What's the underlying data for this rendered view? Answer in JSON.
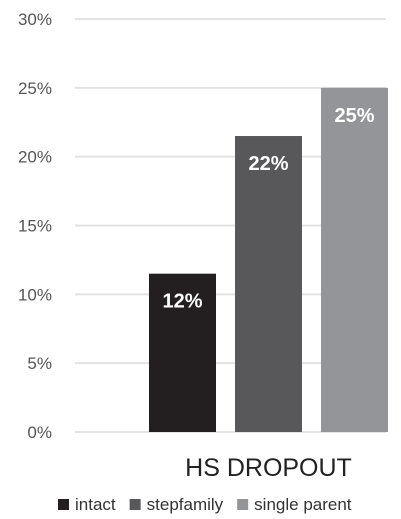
{
  "chart_data": {
    "type": "bar",
    "categories": [
      "HS DROPOUT"
    ],
    "series": [
      {
        "name": "intact",
        "values": [
          11.5
        ],
        "label": "12%",
        "color": "#231f20"
      },
      {
        "name": "stepfamily",
        "values": [
          21.5
        ],
        "label": "22%",
        "color": "#58585a"
      },
      {
        "name": "single parent",
        "values": [
          25
        ],
        "label": "25%",
        "color": "#939598"
      }
    ],
    "ylim": [
      0,
      30
    ],
    "yticks": [
      {
        "value": 0,
        "label": "0%"
      },
      {
        "value": 5,
        "label": "5%"
      },
      {
        "value": 10,
        "label": "10%"
      },
      {
        "value": 15,
        "label": "15%"
      },
      {
        "value": 20,
        "label": "20%"
      },
      {
        "value": 25,
        "label": "25%"
      },
      {
        "value": 30,
        "label": "30%"
      }
    ],
    "grid": true,
    "legend_position": "bottom",
    "title": "",
    "xlabel": "",
    "ylabel": ""
  }
}
